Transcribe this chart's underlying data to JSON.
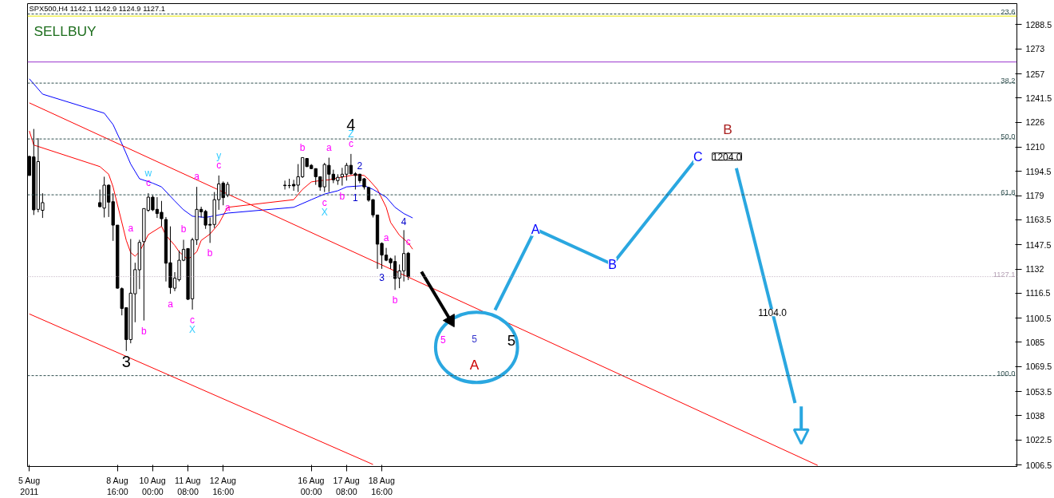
{
  "chart_data": {
    "type": "candlestick",
    "title": "SPX500,H4  1142.1 1142.9 1124.9 1127.1",
    "subtitle": "SELLBUY",
    "x": [
      "2011-08-05T08:00",
      "2011-08-05T12:00",
      "2011-08-05T16:00",
      "2011-08-05T20:00",
      "2011-08-08T00:00",
      "2011-08-08T04:00",
      "2011-08-08T08:00",
      "2011-08-08T12:00",
      "2011-08-08T16:00",
      "2011-08-08T20:00",
      "2011-08-09T00:00",
      "2011-08-09T04:00",
      "2011-08-09T08:00",
      "2011-08-09T12:00",
      "2011-08-09T16:00",
      "2011-08-09T20:00",
      "2011-08-10T00:00",
      "2011-08-10T04:00",
      "2011-08-10T08:00",
      "2011-08-10T12:00",
      "2011-08-10T16:00",
      "2011-08-10T20:00",
      "2011-08-11T00:00",
      "2011-08-11T04:00",
      "2011-08-11T08:00",
      "2011-08-11T12:00",
      "2011-08-11T16:00",
      "2011-08-11T20:00",
      "2011-08-12T00:00",
      "2011-08-12T04:00",
      "2011-08-12T08:00",
      "2011-08-12T12:00",
      "2011-08-12T16:00",
      "2011-08-12T20:00",
      "2011-08-15T00:00",
      "2011-08-15T04:00",
      "2011-08-15T08:00",
      "2011-08-15T12:00",
      "2011-08-15T16:00",
      "2011-08-15T20:00",
      "2011-08-16T00:00",
      "2011-08-16T04:00",
      "2011-08-16T08:00",
      "2011-08-16T12:00",
      "2011-08-16T16:00",
      "2011-08-16T20:00",
      "2011-08-17T00:00",
      "2011-08-17T04:00",
      "2011-08-17T08:00",
      "2011-08-17T12:00",
      "2011-08-17T16:00",
      "2011-08-17T20:00",
      "2011-08-18T00:00",
      "2011-08-18T04:00",
      "2011-08-18T08:00",
      "2011-08-18T12:00",
      "2011-08-18T16:00",
      "2011-08-18T20:00",
      "2011-08-19T00:00",
      "2011-08-19T04:00",
      "2011-08-19T08:00",
      "2011-08-19T12:00",
      "2011-08-19T16:00"
    ],
    "ohlc": [
      [
        1204.1,
        1204.5,
        1191.9,
        1191.9
      ],
      [
        1203.8,
        1221.7,
        1166.6,
        1169.9
      ],
      [
        1170.2,
        1215.8,
        1168.3,
        1200.8
      ],
      [
        1169.6,
        1180.5,
        1164.7,
        1174.5
      ],
      [
        1174.5,
        1182.9,
        1171.5,
        1171.9
      ],
      [
        1171.0,
        1191.1,
        1165.0,
        1185.7
      ],
      [
        1185.7,
        1186.2,
        1165.3,
        1174.8
      ],
      [
        1175.1,
        1180.5,
        1150.0,
        1160.1
      ],
      [
        1160.1,
        1160.1,
        1119.4,
        1119.7
      ],
      [
        1119.4,
        1120.2,
        1102.3,
        1106.7
      ],
      [
        1107.2,
        1107.2,
        1079.5,
        1086.8
      ],
      [
        1086.8,
        1151.2,
        1084.4,
        1116.5
      ],
      [
        1116.1,
        1136.0,
        1097.9,
        1131.6
      ],
      [
        1131.5,
        1150.7,
        1119.1,
        1149.0
      ],
      [
        1149.5,
        1170.7,
        1099.0,
        1170.7
      ],
      [
        1169.6,
        1180.5,
        1168.6,
        1178.0
      ],
      [
        1178.0,
        1179.3,
        1169.1,
        1169.9
      ],
      [
        1170.2,
        1178.0,
        1164.7,
        1167.5
      ],
      [
        1168.3,
        1175.6,
        1159.3,
        1164.2
      ],
      [
        1163.7,
        1165.3,
        1124.0,
        1135.7
      ],
      [
        1136.0,
        1159.3,
        1116.1,
        1120.1
      ],
      [
        1119.7,
        1130.0,
        1117.8,
        1126.2
      ],
      [
        1125.1,
        1143.8,
        1124.0,
        1137.6
      ],
      [
        1137.6,
        1150.7,
        1137.0,
        1144.6
      ],
      [
        1145.1,
        1145.1,
        1112.1,
        1112.6
      ],
      [
        1112.9,
        1152.0,
        1106.0,
        1150.7
      ],
      [
        1150.7,
        1184.6,
        1147.4,
        1170.2
      ],
      [
        1170.2,
        1171.9,
        1165.0,
        1168.6
      ],
      [
        1168.9,
        1169.9,
        1157.7,
        1160.1
      ],
      [
        1160.6,
        1165.0,
        1148.7,
        1160.1
      ],
      [
        1160.5,
        1181.3,
        1158.2,
        1176.4
      ],
      [
        1176.4,
        1191.9,
        1169.9,
        1186.5
      ],
      [
        1187.0,
        1188.1,
        1172.8,
        1177.7
      ],
      [
        1179.3,
        1187.8,
        1178.0,
        1186.2
      ],
      [
        1185.7,
        1188.6,
        1182.9,
        1185.4
      ],
      [
        1185.5,
        1189.8,
        1183.7,
        1185.4
      ],
      [
        1186.2,
        1189.1,
        1182.1,
        1185.2
      ],
      [
        1185.7,
        1199.2,
        1181.3,
        1191.1
      ],
      [
        1191.1,
        1203.3,
        1190.3,
        1203.3
      ],
      [
        1202.8,
        1202.8,
        1197.3,
        1197.6
      ],
      [
        1198.4,
        1199.2,
        1196.0,
        1196.3
      ],
      [
        1196.3,
        1196.3,
        1185.9,
        1191.1
      ],
      [
        1191.1,
        1191.1,
        1182.1,
        1184.6
      ],
      [
        1184.6,
        1200.0,
        1181.3,
        1198.9
      ],
      [
        1198.4,
        1203.3,
        1181.3,
        1192.7
      ],
      [
        1192.7,
        1195.6,
        1187.0,
        1189.1
      ],
      [
        1188.6,
        1192.7,
        1185.9,
        1190.7
      ],
      [
        1191.1,
        1196.8,
        1185.4,
        1192.7
      ],
      [
        1192.7,
        1200.0,
        1188.6,
        1198.4
      ],
      [
        1198.4,
        1205.7,
        1192.4,
        1193.0
      ],
      [
        1193.0,
        1194.0,
        1182.9,
        1191.9
      ],
      [
        1192.7,
        1193.0,
        1187.0,
        1188.6
      ],
      [
        1189.8,
        1190.3,
        1182.9,
        1184.6
      ],
      [
        1184.2,
        1184.6,
        1175.1,
        1176.1
      ],
      [
        1176.4,
        1176.7,
        1165.0,
        1166.6
      ],
      [
        1166.6,
        1166.6,
        1132.1,
        1147.9
      ],
      [
        1148.4,
        1149.0,
        1132.1,
        1140.9
      ],
      [
        1140.9,
        1145.5,
        1137.0,
        1137.6
      ],
      [
        1138.5,
        1139.3,
        1132.1,
        1136.0
      ],
      [
        1136.8,
        1140.6,
        1118.6,
        1125.9
      ],
      [
        1126.2,
        1134.9,
        1119.7,
        1130.8
      ],
      [
        1130.8,
        1156.9,
        1124.0,
        1141.9
      ],
      [
        1142.1,
        1142.9,
        1124.9,
        1127.1
      ]
    ],
    "series": [
      {
        "type": "line",
        "color": "#ff0000",
        "x": [
          "2011-08-05T08:00",
          "2011-08-05T12:00",
          "2011-08-08T00:00",
          "2011-08-08T08:00",
          "2011-08-08T12:00",
          "2011-08-09T00:00",
          "2011-08-09T04:00",
          "2011-08-09T08:00",
          "2011-08-09T12:00",
          "2011-08-09T20:00",
          "2011-08-10T08:00",
          "2011-08-10T12:00",
          "2011-08-10T20:00",
          "2011-08-11T00:00",
          "2011-08-11T08:00",
          "2011-08-11T16:00",
          "2011-08-11T20:00",
          "2011-08-12T04:00",
          "2011-08-12T12:00",
          "2011-08-12T20:00",
          "2011-08-15T08:00",
          "2011-08-15T16:00",
          "2011-08-16T00:00",
          "2011-08-16T08:00",
          "2011-08-16T16:00",
          "2011-08-17T00:00",
          "2011-08-17T08:00",
          "2011-08-17T16:00",
          "2011-08-18T00:00",
          "2011-08-18T04:00",
          "2011-08-18T12:00",
          "2011-08-18T20:00",
          "2011-08-19T00:00",
          "2011-08-19T08:00",
          "2011-08-19T16:00",
          "2011-08-19T20:00"
        ],
        "values": [
          1220.4,
          1211.4,
          1197.6,
          1192.7,
          1184.6,
          1150.3,
          1142.5,
          1140.2,
          1143.0,
          1154.0,
          1159.3,
          1153.6,
          1147.1,
          1143.0,
          1138.1,
          1143.0,
          1150.3,
          1154.4,
          1161.0,
          1171.5,
          1176.4,
          1183.0,
          1187.8,
          1188.6,
          1189.1,
          1190.3,
          1191.4,
          1192.4,
          1191.9,
          1189.4,
          1183.0,
          1171.5,
          1161.8,
          1153.6,
          1148.7,
          1144.7
        ]
      },
      {
        "type": "line",
        "color": "#0000ff",
        "x": [
          "2011-08-05T08:00",
          "2011-08-05T20:00",
          "2011-08-08T04:00",
          "2011-08-08T12:00",
          "2011-08-08T20:00",
          "2011-08-09T04:00",
          "2011-08-09T12:00",
          "2011-08-10T00:00",
          "2011-08-10T08:00",
          "2011-08-10T20:00",
          "2011-08-11T04:00",
          "2011-08-11T12:00",
          "2011-08-12T00:00",
          "2011-08-12T12:00",
          "2011-08-12T20:00",
          "2011-08-15T08:00",
          "2011-08-16T00:00",
          "2011-08-16T12:00",
          "2011-08-17T00:00",
          "2011-08-17T08:00",
          "2011-08-18T00:00",
          "2011-08-18T08:00",
          "2011-08-18T20:00",
          "2011-08-19T04:00",
          "2011-08-19T12:00",
          "2011-08-19T20:00"
        ],
        "values": [
          1253.8,
          1244.0,
          1231.8,
          1224.5,
          1212.3,
          1199.2,
          1189.8,
          1187.0,
          1184.6,
          1175.6,
          1169.9,
          1165.8,
          1165.0,
          1166.6,
          1167.8,
          1171.5,
          1176.4,
          1180.0,
          1182.1,
          1184.6,
          1185.4,
          1183.0,
          1178.0,
          1171.5,
          1167.5,
          1164.7
        ]
      },
      {
        "type": "line",
        "color": "#ff0000",
        "x": [
          "2011-08-05T08:00",
          "2011-09-04T03:42"
        ],
        "values": [
          1238.4,
          1006.2
        ]
      },
      {
        "type": "line",
        "color": "#ff0000",
        "x": [
          "2011-08-05T08:00",
          "2011-08-18T08:00"
        ],
        "values": [
          1103.2,
          1006.8
        ]
      },
      {
        "type": "line",
        "color": "#2aa7e0",
        "x": [
          "2011-08-22T22:48",
          "2011-08-24T11:24",
          "2011-08-27T09:18",
          "2011-08-30T15:00"
        ],
        "values": [
          1105.7,
          1157.5,
          1135.0,
          1204.0
        ]
      },
      {
        "type": "line",
        "color": "#2aa7e0",
        "x": [
          "2011-09-01T01:54",
          "2011-09-03T07:12"
        ],
        "values": [
          1196.6,
          1046.1
        ]
      }
    ],
    "xlim": [
      "2011-08-05T06:20",
      "2011-09-11T16:36"
    ],
    "ylim": [
      1005.5,
      1302
    ],
    "y2lim": [
      119.2,
      21.4
    ],
    "xticks": [
      {
        "value": "2011-08-05T08:00",
        "label": "5 Aug 2011"
      },
      {
        "value": "2011-08-08T16:00",
        "label": "8 Aug 16:00"
      },
      {
        "value": "2011-08-10T00:00",
        "label": "10 Aug 00:00"
      },
      {
        "value": "2011-08-11T08:00",
        "label": "11 Aug 08:00"
      },
      {
        "value": "2011-08-12T16:00",
        "label": "12 Aug 16:00"
      },
      {
        "value": "2011-08-16T00:00",
        "label": "16 Aug 00:00"
      },
      {
        "value": "2011-08-17T08:00",
        "label": "17 Aug 08:00"
      },
      {
        "value": "2011-08-18T16:00",
        "label": "18 Aug 16:00"
      }
    ],
    "yticks": [
      1006.5,
      1022.5,
      1038.0,
      1053.5,
      1069.5,
      1085.0,
      1100.5,
      1116.5,
      1132.0,
      1147.5,
      1163.5,
      1179.0,
      1194.5,
      1210.0,
      1226.0,
      1241.5,
      1257.0,
      1273.0,
      1288.5
    ],
    "ref_lines": [
      {
        "axis": "y2",
        "value": 23.6,
        "label": "23.6",
        "color": "#2f4f4f",
        "line_style": "dashed"
      },
      {
        "axis": "y",
        "value": 1294.0,
        "color": "#e6e600",
        "line_style": "solid"
      },
      {
        "axis": "y",
        "value": 1264.6,
        "color": "#9933cc",
        "line_style": "solid"
      },
      {
        "axis": "y2",
        "value": 38.2,
        "label": "38.2",
        "color": "#2f4f4f",
        "line_style": "dashed"
      },
      {
        "axis": "y2",
        "value": 50.0,
        "label": "50.0",
        "color": "#2f4f4f",
        "line_style": "dashed"
      },
      {
        "axis": "y2",
        "value": 61.8,
        "label": "61.8",
        "color": "#2f4f4f",
        "line_style": "dashed"
      },
      {
        "axis": "y",
        "value": 1127.1,
        "label": "1127.1",
        "color": "#b4a0b4",
        "line_style": "dotted"
      },
      {
        "axis": "y2",
        "value": 100.0,
        "label": "100.0",
        "color": "#2f4f4f",
        "line_style": "dashed"
      }
    ],
    "annotations": [
      {
        "text": "3",
        "x": "2011-08-09T00:00",
        "y": 1079.5
      },
      {
        "text": "a",
        "x": "2011-08-09T04:00",
        "y": 1151.2
      },
      {
        "text": "b",
        "x": "2011-08-09T16:00",
        "y": 1099.0
      },
      {
        "text": "c",
        "x": "2011-08-09T20:00",
        "y": 1180.5
      },
      {
        "text": "w",
        "x": "2011-08-09T20:00",
        "y": 1180.5
      },
      {
        "text": "a",
        "x": "2011-08-10T16:00",
        "y": 1116.1
      },
      {
        "text": "b",
        "x": "2011-08-11T04:00",
        "y": 1150.7
      },
      {
        "text": "c",
        "x": "2011-08-11T12:00",
        "y": 1106.0
      },
      {
        "text": "X",
        "x": "2011-08-11T12:00",
        "y": 1106.0
      },
      {
        "text": "a",
        "x": "2011-08-11T16:00",
        "y": 1184.6
      },
      {
        "text": "b",
        "x": "2011-08-12T04:00",
        "y": 1148.7
      },
      {
        "text": "c",
        "x": "2011-08-12T12:00",
        "y": 1191.9
      },
      {
        "text": "y",
        "x": "2011-08-12T12:00",
        "y": 1191.9
      },
      {
        "text": "a",
        "x": "2011-08-12T20:00",
        "y": 1178.0
      },
      {
        "text": "b",
        "x": "2011-08-15T16:00",
        "y": 1203.3
      },
      {
        "text": "c",
        "x": "2011-08-16T12:00",
        "y": 1181.3
      },
      {
        "text": "X",
        "x": "2011-08-16T12:00",
        "y": 1181.3
      },
      {
        "text": "a",
        "x": "2011-08-16T16:00",
        "y": 1203.3
      },
      {
        "text": "b",
        "x": "2011-08-17T04:00",
        "y": 1185.4
      },
      {
        "text": "c",
        "x": "2011-08-17T12:00",
        "y": 1205.7
      },
      {
        "text": "Z",
        "x": "2011-08-17T12:00",
        "y": 1205.7
      },
      {
        "text": "4",
        "x": "2011-08-17T12:00",
        "y": 1205.7
      },
      {
        "text": "1",
        "x": "2011-08-17T16:00",
        "y": 1182.9
      },
      {
        "text": "2",
        "x": "2011-08-17T20:00",
        "y": 1193.0
      },
      {
        "text": "3",
        "x": "2011-08-18T16:00",
        "y": 1132.1
      },
      {
        "text": "a",
        "x": "2011-08-18T20:00",
        "y": 1145.5
      },
      {
        "text": "b",
        "x": "2011-08-19T04:00",
        "y": 1118.6
      },
      {
        "text": "4",
        "x": "2011-08-19T12:00",
        "y": 1156.9
      },
      {
        "text": "c",
        "x": "2011-08-19T16:00",
        "y": 1142.9
      },
      {
        "text": "A",
        "x": "2011-08-24T11:24",
        "y": 1157.5
      },
      {
        "text": "B",
        "x": "2011-08-27T09:18",
        "y": 1135.0
      },
      {
        "text": "C",
        "x": "2011-08-30T15:00",
        "y": 1204.0
      },
      {
        "text": "1204.0",
        "x": "2011-08-30T15:00",
        "y": 1204.0
      },
      {
        "text": "1104.0",
        "x": "2011-09-02T10:36",
        "y": 1104.0
      },
      "5",
      "5",
      "5",
      "A",
      "B"
    ]
  }
}
